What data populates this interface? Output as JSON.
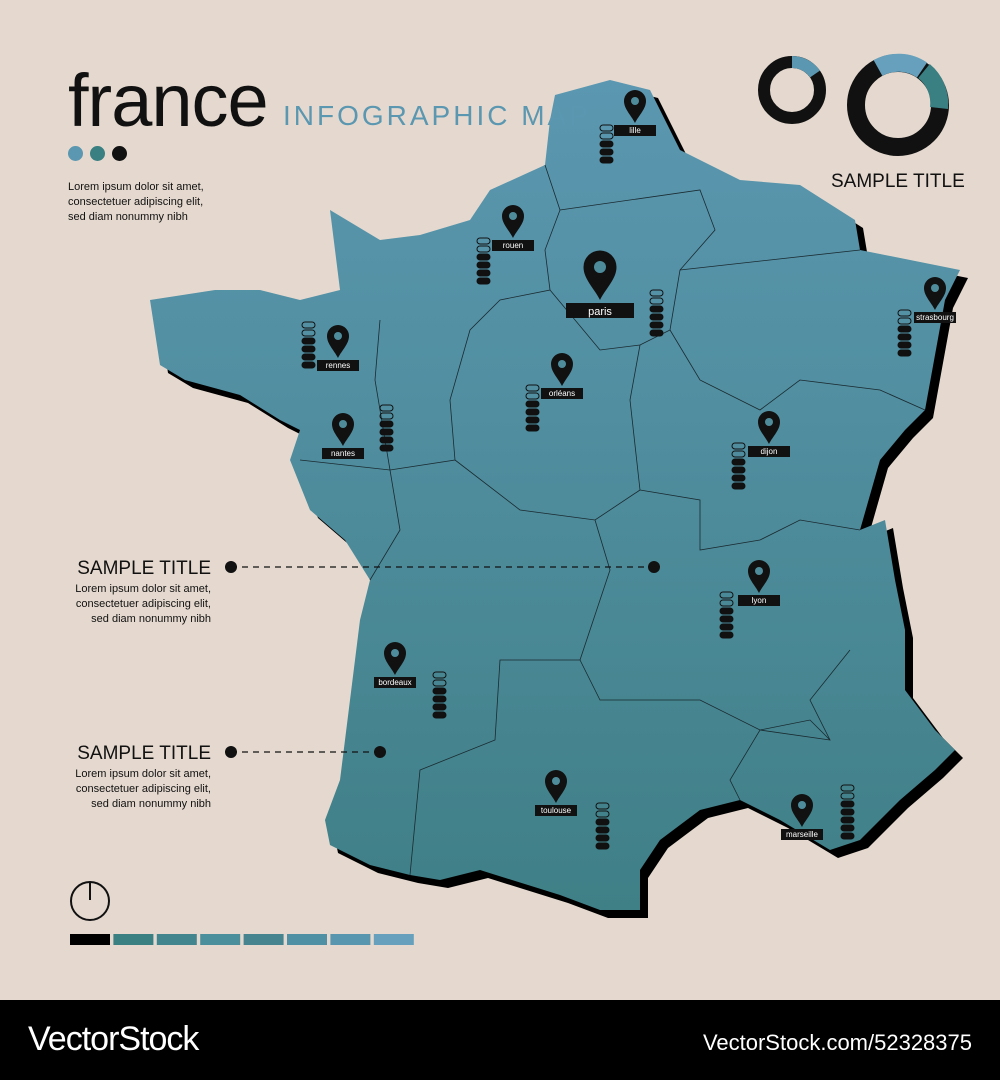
{
  "header": {
    "title": "france",
    "subtitle": "INFOGRAPHIC MAP",
    "lorem": [
      "Lorem ipsum dolor sit amet,",
      "consectetuer adipiscing elit,",
      "sed diam nonummy nibh"
    ]
  },
  "palette": [
    "#5b97b0",
    "#3a7f82",
    "#111111"
  ],
  "top_right": {
    "title": "SAMPLE TITLE"
  },
  "callouts": [
    {
      "title": "SAMPLE TITLE",
      "lines": [
        "Lorem ipsum dolor sit amet,",
        "consectetuer adipiscing elit,",
        "sed diam nonummy nibh"
      ]
    },
    {
      "title": "SAMPLE TITLE",
      "lines": [
        "Lorem ipsum dolor sit amet,",
        "consectetuer adipiscing elit,",
        "sed diam nonummy nibh"
      ]
    }
  ],
  "cities": [
    "lille",
    "rouen",
    "paris",
    "strasbourg",
    "rennes",
    "orléans",
    "nantes",
    "dijon",
    "lyon",
    "bordeaux",
    "toulouse",
    "marseille"
  ],
  "scale_colors": [
    "#000000",
    "#3a7f82",
    "#43858e",
    "#4b8f9c",
    "#46858f",
    "#5090a4",
    "#5896b0",
    "#66a0bc"
  ],
  "footer": {
    "brand": "VectorStock",
    "url": "VectorStock.com/52328375"
  }
}
